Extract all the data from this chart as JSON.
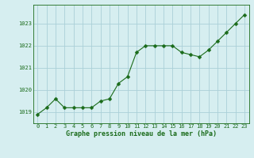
{
  "x": [
    0,
    1,
    2,
    3,
    4,
    5,
    6,
    7,
    8,
    9,
    10,
    11,
    12,
    13,
    14,
    15,
    16,
    17,
    18,
    19,
    20,
    21,
    22,
    23
  ],
  "y": [
    1018.9,
    1019.2,
    1019.6,
    1019.2,
    1019.2,
    1019.2,
    1019.2,
    1019.5,
    1019.6,
    1020.3,
    1020.6,
    1021.7,
    1022.0,
    1022.0,
    1022.0,
    1022.0,
    1021.7,
    1021.6,
    1021.5,
    1021.8,
    1022.2,
    1022.6,
    1023.0,
    1023.4
  ],
  "line_color": "#1a6b1a",
  "marker_color": "#1a6b1a",
  "bg_color": "#d6eef0",
  "grid_color": "#aad0d8",
  "xlabel": "Graphe pression niveau de la mer (hPa)",
  "label_color": "#1a6b1a",
  "ylim_min": 1018.5,
  "ylim_max": 1023.85,
  "yticks": [
    1019,
    1020,
    1021,
    1022,
    1023
  ],
  "xticks": [
    0,
    1,
    2,
    3,
    4,
    5,
    6,
    7,
    8,
    9,
    10,
    11,
    12,
    13,
    14,
    15,
    16,
    17,
    18,
    19,
    20,
    21,
    22,
    23
  ],
  "tick_fontsize": 5.0,
  "label_fontsize": 6.0
}
